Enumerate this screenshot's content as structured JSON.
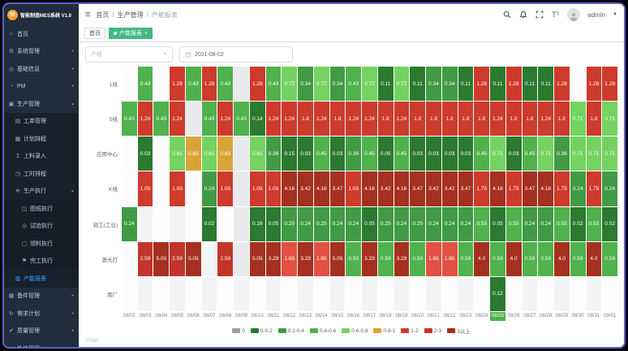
{
  "sidebar": {
    "logo_text": "智能制造MES系统 V1.0",
    "menu": [
      {
        "icon": "home",
        "label": "首页",
        "level": 1
      },
      {
        "icon": "gear",
        "label": "系统管理",
        "level": 1,
        "arrow": true
      },
      {
        "icon": "globe",
        "label": "基础信息",
        "level": 1,
        "arrow": true
      },
      {
        "icon": "clock",
        "label": "PM",
        "level": 1,
        "arrow": true
      },
      {
        "icon": "factory",
        "label": "生产管理",
        "level": 1,
        "arrow": true,
        "expanded": true
      },
      {
        "icon": "doc",
        "label": "工单管理",
        "level": 2
      },
      {
        "icon": "calendar",
        "label": "计划排程",
        "level": 2
      },
      {
        "icon": "upload",
        "label": "上料录入",
        "level": 2
      },
      {
        "icon": "clock2",
        "label": "工时排程",
        "level": 2
      },
      {
        "icon": "list",
        "label": "生产执行",
        "level": 2,
        "arrow": true,
        "expanded": true
      },
      {
        "icon": "chart",
        "label": "图纸执行",
        "level": 3
      },
      {
        "icon": "target",
        "label": "试验执行",
        "level": 3
      },
      {
        "icon": "box",
        "label": "领料执行",
        "level": 3
      },
      {
        "icon": "flag",
        "label": "完工执行",
        "level": 3
      },
      {
        "icon": "report",
        "label": "产能报表",
        "level": 2,
        "active": true
      },
      {
        "icon": "grid",
        "label": "备件管理",
        "level": 1,
        "arrow": true
      },
      {
        "icon": "plan",
        "label": "需求计划",
        "level": 1,
        "arrow": true
      },
      {
        "icon": "quality",
        "label": "质量管理",
        "level": 1,
        "arrow": true
      },
      {
        "icon": "share",
        "label": "外协管理",
        "level": 1,
        "arrow": true
      }
    ]
  },
  "header": {
    "breadcrumb": [
      "首页",
      "生产管理",
      "产能报表"
    ],
    "user": "admin",
    "icons": [
      "search",
      "bell",
      "fullscreen",
      "font-size"
    ]
  },
  "tabs": [
    {
      "label": "首页",
      "active": false,
      "closable": false
    },
    {
      "label": "产能报表",
      "active": true,
      "closable": true
    }
  ],
  "filters": {
    "line_placeholder": "产线",
    "date_value": "2021-08-02"
  },
  "footer_note": "#7488",
  "chart_data": {
    "type": "heatmap",
    "x_dates": [
      "08/02",
      "08/03",
      "08/04",
      "08/05",
      "08/06",
      "08/07",
      "08/08",
      "08/09",
      "08/10",
      "08/11",
      "08/12",
      "08/13",
      "08/14",
      "08/15",
      "08/16",
      "08/17",
      "08/18",
      "08/19",
      "08/20",
      "08/21",
      "08/22",
      "08/23",
      "08/24",
      "08/25",
      "08/26",
      "08/27",
      "08/28",
      "08/29",
      "08/30",
      "08/31",
      "09/01"
    ],
    "highlighted_date": "08/25",
    "rows": [
      {
        "name": "1线",
        "values": [
          "",
          "0.43",
          "",
          "1.28",
          "0.43",
          "1.28",
          "0.43",
          "0",
          "1.28",
          "0.43",
          "0.72",
          "0.34",
          "0.72",
          "0.34",
          "0.43",
          "0.72",
          "0.11",
          "0.72",
          "0.11",
          "0.34",
          "0.34",
          "0.11",
          "1.28",
          "0.11",
          "1.28",
          "0.11",
          "0.11",
          "1.28",
          "",
          "1.28",
          "1.28"
        ]
      },
      {
        "name": "5线",
        "values": [
          "0.43",
          "1.24",
          "0.43",
          "1.24",
          "0",
          "0.43",
          "1.24",
          "0.43",
          "0.14",
          "1.24",
          "1.24",
          "1.8",
          "1.24",
          "1.8",
          "1.24",
          "1.24",
          "1.8",
          "1.24",
          "1.8",
          "1.8",
          "1.8",
          "1.8",
          "1.8",
          "1.24",
          "1.8",
          "1.8",
          "1.24",
          "1.8",
          "0.71",
          "1.8",
          "0.71"
        ]
      },
      {
        "name": "应用中心",
        "values": [
          "",
          "0.03",
          "",
          "0.61",
          "0.83",
          "0.61",
          "0.83",
          "0",
          "0.61",
          "0.36",
          "0.15",
          "0.03",
          "0.45",
          "0.03",
          "0.36",
          "0.45",
          "0.05",
          "0.45",
          "0.03",
          "0.03",
          "0.03",
          "0.03",
          "0.45",
          "0.71",
          "0.03",
          "0.45",
          "0.71",
          "0.36",
          "0.71",
          "0.71",
          "0.71"
        ]
      },
      {
        "name": "K线",
        "values": [
          "",
          "1.05",
          "",
          "1.05",
          "",
          "0.24",
          "1.05",
          "0",
          "1.05",
          "1.05",
          "4.16",
          "3.42",
          "4.16",
          "3.47",
          "1.05",
          "4.16",
          "3.42",
          "4.16",
          "3.47",
          "3.42",
          "3.42",
          "3.47",
          "1.75",
          "4.16",
          "1.75",
          "3.47",
          "4.16",
          "1.75",
          "0.24",
          "1.75",
          "0.24"
        ]
      },
      {
        "name": "钳工(工业)",
        "values": [
          "0.24",
          "",
          "",
          "",
          "",
          "0.02",
          "",
          "0",
          "0.16",
          "0.05",
          "0.25",
          "0.24",
          "0.25",
          "0.24",
          "0.24",
          "0.05",
          "0.25",
          "0.24",
          "0.25",
          "0.24",
          "0.24",
          "0.24",
          "0.55",
          "0.05",
          "0.55",
          "0.24",
          "0.24",
          "0.55",
          "0.02",
          "0.55",
          "0.02"
        ]
      },
      {
        "name": "激光灯",
        "values": [
          "",
          "2.59",
          "5.05",
          "2.59",
          "5.05",
          "",
          "2.59",
          "0",
          "5.05",
          "3.29",
          "1.65",
          "3.29",
          "1.65",
          "5.05",
          "0.50",
          "3.29",
          "0.59",
          "3.29",
          "0.59",
          "1.65",
          "1.65",
          "0.59",
          "4.0",
          "0.59",
          "4.0",
          "0.59",
          "0.59",
          "4.0",
          "0.59",
          "4.0",
          "0.59"
        ]
      },
      {
        "name": "南厂",
        "values": [
          "",
          "",
          "",
          "",
          "",
          "",
          "",
          "",
          "",
          "",
          "",
          "",
          "",
          "",
          "",
          "",
          "",
          "",
          "",
          "",
          "",
          "",
          "",
          "0.12",
          "",
          "",
          "",
          "",
          "",
          "",
          ""
        ]
      }
    ],
    "legend": [
      {
        "label": "0",
        "color": "#9e9e9e"
      },
      {
        "label": "0-0.2",
        "color": "#2b7a30"
      },
      {
        "label": "0.2-0.4",
        "color": "#419b44"
      },
      {
        "label": "0.4-0.6",
        "color": "#4fb24c"
      },
      {
        "label": "0.6-0.8",
        "color": "#74d360"
      },
      {
        "label": "0.8-1",
        "color": "#d9a437"
      },
      {
        "label": "1-2",
        "color": "#ce3a2c"
      },
      {
        "label": "2-3",
        "color": "#c43529"
      },
      {
        "label": "3以上",
        "color": "#a5301f"
      }
    ]
  }
}
